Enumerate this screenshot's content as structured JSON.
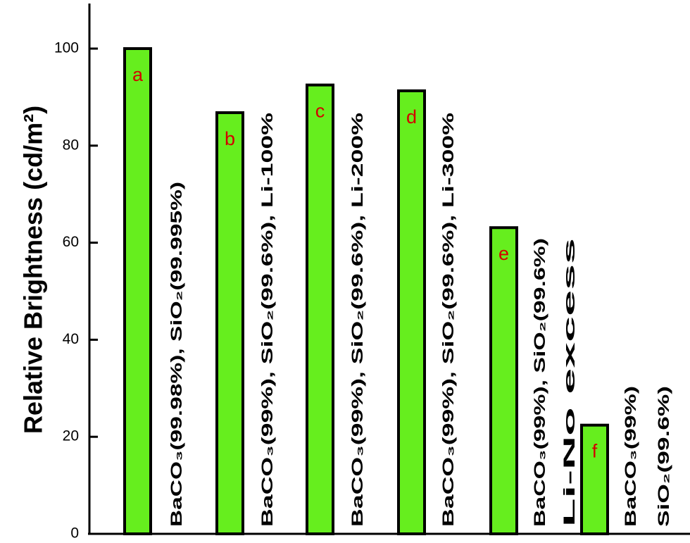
{
  "chart_data": {
    "type": "bar",
    "title": "",
    "xlabel": "",
    "ylabel": "Relative Brightness (cd/m²)",
    "ylim": [
      0,
      105
    ],
    "yticks": [
      0,
      20,
      40,
      60,
      80,
      100
    ],
    "grid": false,
    "legend": "none",
    "bar_color": "#66ee1e",
    "letter_color": "#d40000",
    "categories": [
      "a",
      "b",
      "c",
      "d",
      "e",
      "f"
    ],
    "values": [
      100,
      86.8,
      92.5,
      91.3,
      63.1,
      22.4
    ],
    "descriptions": [
      [
        "BaCO₃(99.98%), SiO₂(99.995%)"
      ],
      [
        "BaCO₃(99%), SiO₂(99.6%), Li-100%"
      ],
      [
        "BaCO₃(99%), SiO₂(99.6%), Li-200%"
      ],
      [
        "BaCO₃(99%), SiO₂(99.6%), Li-300%"
      ],
      [
        "BaCO₃(99%), SiO₂(99.6%)",
        "Li-No excess"
      ],
      [
        "BaCO₃(99%)",
        "SiO₂(99.6%)"
      ]
    ]
  }
}
